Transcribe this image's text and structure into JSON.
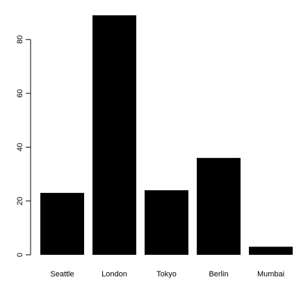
{
  "chart_data": {
    "type": "bar",
    "title": "",
    "xlabel": "",
    "ylabel": "",
    "categories": [
      "Seattle",
      "London",
      "Tokyo",
      "Berlin",
      "Mumbai"
    ],
    "values": [
      23,
      89,
      24,
      36,
      3
    ],
    "ylim": [
      0,
      89
    ],
    "yticks": [
      0,
      20,
      40,
      60,
      80
    ],
    "ytick_labels": [
      "0",
      "20",
      "40",
      "60",
      "80"
    ],
    "grid": false,
    "legend": "none",
    "bar_color": "#000000",
    "background": "#ffffff"
  }
}
